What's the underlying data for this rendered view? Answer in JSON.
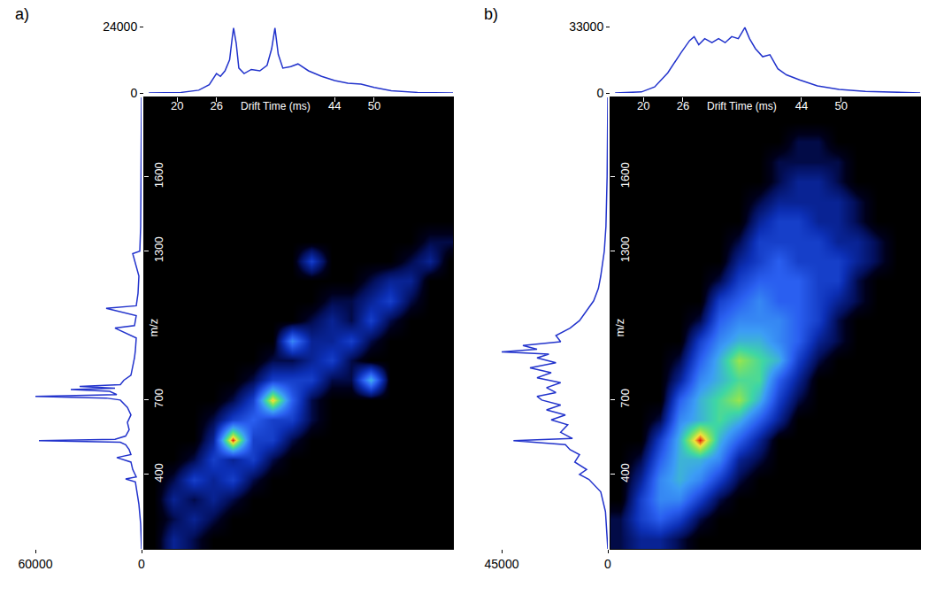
{
  "chart_data": [
    {
      "type": "heatmap",
      "title": "a)",
      "x_label": "Drift Time (ms)",
      "y_label": "m/z",
      "xlim": [
        15,
        62
      ],
      "xticks": [
        20,
        26,
        44,
        50
      ],
      "ylim": [
        100,
        1920
      ],
      "yticks": [
        400,
        700,
        1300,
        1600
      ],
      "x": [
        16.5,
        19.5,
        22.5,
        25.5,
        28.5,
        31.5,
        34.5,
        37.5,
        40.5,
        43.5,
        46.5,
        49.5,
        52.5,
        55.5,
        58.5,
        61.5
      ],
      "y": [
        140,
        220,
        300,
        380,
        460,
        540,
        620,
        700,
        780,
        860,
        940,
        1020,
        1100,
        1180,
        1260,
        1340,
        1420,
        1500,
        1580,
        1660,
        1740,
        1820,
        1900
      ],
      "z": [
        [
          0,
          2,
          1,
          0,
          0,
          0,
          0,
          0,
          0,
          0,
          0,
          0,
          0,
          0,
          0,
          0
        ],
        [
          0,
          1,
          2,
          1,
          0,
          0,
          0,
          0,
          0,
          0,
          0,
          0,
          0,
          0,
          0,
          0
        ],
        [
          0,
          2,
          1,
          2,
          1,
          0,
          0,
          0,
          0,
          0,
          0,
          0,
          0,
          0,
          0,
          0
        ],
        [
          0,
          1,
          3,
          2,
          3,
          1,
          0,
          0,
          0,
          0,
          0,
          0,
          0,
          0,
          0,
          0
        ],
        [
          0,
          0,
          1,
          3,
          2,
          3,
          1,
          0,
          0,
          0,
          0,
          0,
          0,
          0,
          0,
          0
        ],
        [
          0,
          0,
          0,
          2,
          10,
          3,
          3,
          1,
          0,
          0,
          0,
          0,
          0,
          0,
          0,
          0
        ],
        [
          0,
          0,
          0,
          1,
          3,
          4,
          3,
          3,
          1,
          0,
          0,
          0,
          0,
          0,
          0,
          0
        ],
        [
          0,
          0,
          0,
          0,
          1,
          3,
          9,
          4,
          1,
          0,
          0,
          0,
          0,
          0,
          0,
          0
        ],
        [
          0,
          0,
          0,
          0,
          0,
          1,
          3,
          3,
          3,
          1,
          1,
          6,
          0,
          0,
          0,
          0
        ],
        [
          0,
          0,
          0,
          0,
          0,
          0,
          1,
          1,
          2,
          3,
          1,
          0,
          0,
          0,
          0,
          0
        ],
        [
          0,
          0,
          0,
          0,
          0,
          0,
          0,
          5,
          2,
          2,
          3,
          1,
          0,
          0,
          0,
          0
        ],
        [
          0,
          0,
          0,
          0,
          0,
          0,
          0,
          0,
          1,
          2,
          1,
          3,
          1,
          0,
          0,
          0
        ],
        [
          0,
          0,
          0,
          0,
          0,
          0,
          0,
          0,
          0,
          1,
          1,
          2,
          3,
          1,
          0,
          0
        ],
        [
          0,
          0,
          0,
          0,
          0,
          0,
          0,
          0,
          0,
          0,
          0,
          1,
          2,
          2,
          0,
          0
        ],
        [
          0,
          0,
          0,
          0,
          0,
          0,
          0,
          0,
          3,
          0,
          0,
          0,
          0,
          1,
          2,
          0
        ],
        [
          0,
          0,
          0,
          0,
          0,
          0,
          0,
          0,
          0,
          0,
          0,
          0,
          0,
          0,
          1,
          1
        ],
        [
          0,
          0,
          0,
          0,
          0,
          0,
          0,
          0,
          0,
          0,
          0,
          0,
          0,
          0,
          0,
          0
        ],
        [
          0,
          0,
          0,
          0,
          0,
          0,
          0,
          0,
          0,
          0,
          0,
          0,
          0,
          0,
          0,
          0
        ],
        [
          0,
          0,
          0,
          0,
          0,
          0,
          0,
          0,
          0,
          0,
          0,
          0,
          0,
          0,
          0,
          0
        ],
        [
          0,
          0,
          0,
          0,
          0,
          0,
          0,
          0,
          0,
          0,
          0,
          0,
          0,
          0,
          0,
          0
        ],
        [
          0,
          0,
          0,
          0,
          0,
          0,
          0,
          0,
          0,
          0,
          0,
          0,
          0,
          0,
          0,
          0
        ],
        [
          0,
          0,
          0,
          0,
          0,
          0,
          0,
          0,
          0,
          0,
          0,
          0,
          0,
          0,
          0,
          0
        ],
        [
          0,
          0,
          0,
          0,
          0,
          0,
          0,
          0,
          0,
          0,
          0,
          0,
          0,
          0,
          0,
          0
        ]
      ],
      "drift_profile": {
        "type": "line",
        "color": "#2233cc",
        "tick_labels": "y",
        "xlim": [
          15,
          62
        ],
        "ylim": [
          0,
          24000
        ],
        "yticks": [
          0,
          24000
        ],
        "x": [
          15.7,
          20.6,
          23.3,
          24.9,
          26,
          26.6,
          27.3,
          28,
          28.4,
          28.6,
          29,
          29.4,
          30.2,
          31.3,
          32.6,
          33.7,
          34.4,
          34.9,
          35.4,
          36.1,
          37.3,
          38.4,
          40,
          42,
          44,
          46,
          48,
          50,
          52.6,
          56.6,
          62
        ],
        "values": [
          0,
          200,
          1000,
          3000,
          7000,
          6000,
          8000,
          12000,
          20000,
          23500,
          18000,
          9000,
          7000,
          8500,
          8000,
          10000,
          16000,
          23500,
          14000,
          9000,
          9500,
          10500,
          8000,
          6000,
          4500,
          3500,
          3200,
          2000,
          800,
          200,
          0
        ]
      },
      "mass_spectrum": {
        "type": "line",
        "color": "#2233cc",
        "tick_labels": "x",
        "xlim": [
          60000,
          0
        ],
        "xticks": [
          0,
          60000
        ],
        "ylim": [
          100,
          1920
        ],
        "y": [
          100,
          200,
          280,
          330,
          370,
          382,
          390,
          420,
          450,
          468,
          480,
          500,
          520,
          530,
          536,
          542,
          555,
          580,
          610,
          640,
          670,
          700,
          708,
          715,
          722,
          735,
          742,
          748,
          755,
          762,
          780,
          800,
          830,
          870,
          900,
          950,
          990,
          1000,
          1040,
          1070,
          1080,
          1130,
          1200,
          1290,
          1300,
          1400,
          1600,
          1920
        ],
        "values": [
          0,
          500,
          1500,
          2500,
          3500,
          9000,
          3000,
          5000,
          6000,
          14000,
          6000,
          7000,
          9000,
          12000,
          58000,
          15000,
          9000,
          7000,
          8000,
          6000,
          8000,
          12000,
          20000,
          60000,
          14000,
          18000,
          40000,
          15000,
          35000,
          12000,
          10000,
          6000,
          5000,
          4000,
          3500,
          3000,
          15000,
          4000,
          3000,
          20000,
          3000,
          2000,
          1500,
          5000,
          1000,
          500,
          300,
          0
        ]
      }
    },
    {
      "type": "heatmap",
      "title": "b)",
      "x_label": "Drift Time (ms)",
      "y_label": "m/z",
      "xlim": [
        15,
        62
      ],
      "xticks": [
        20,
        26,
        44,
        50
      ],
      "ylim": [
        100,
        1920
      ],
      "yticks": [
        400,
        700,
        1300,
        1600
      ],
      "x": [
        16.5,
        19.5,
        22.5,
        25.5,
        28.5,
        31.5,
        34.5,
        37.5,
        40.5,
        43.5,
        46.5,
        49.5,
        52.5,
        55.5,
        58.5,
        61.5
      ],
      "y": [
        140,
        220,
        300,
        380,
        460,
        540,
        620,
        700,
        780,
        860,
        940,
        1020,
        1100,
        1180,
        1260,
        1340,
        1420,
        1500,
        1580,
        1660,
        1740,
        1820,
        1900
      ],
      "z": [
        [
          1,
          2,
          2,
          1,
          0,
          0,
          0,
          0,
          0,
          0,
          0,
          0,
          0,
          0,
          0,
          0
        ],
        [
          1,
          3,
          4,
          3,
          1,
          0,
          0,
          0,
          0,
          0,
          0,
          0,
          0,
          0,
          0,
          0
        ],
        [
          0,
          3,
          5,
          5,
          3,
          1,
          0,
          0,
          0,
          0,
          0,
          0,
          0,
          0,
          0,
          0
        ],
        [
          0,
          2,
          5,
          6,
          5,
          3,
          1,
          0,
          0,
          0,
          0,
          0,
          0,
          0,
          0,
          0
        ],
        [
          0,
          1,
          4,
          6,
          6,
          5,
          2,
          1,
          0,
          0,
          0,
          0,
          0,
          0,
          0,
          0
        ],
        [
          0,
          0,
          3,
          6,
          10,
          6,
          4,
          2,
          0,
          0,
          0,
          0,
          0,
          0,
          0,
          0
        ],
        [
          0,
          0,
          1,
          5,
          6,
          7,
          6,
          4,
          2,
          0,
          0,
          0,
          0,
          0,
          0,
          0
        ],
        [
          0,
          0,
          0,
          4,
          6,
          7,
          8,
          6,
          3,
          1,
          0,
          0,
          0,
          0,
          0,
          0
        ],
        [
          0,
          0,
          0,
          2,
          5,
          6,
          7,
          7,
          4,
          2,
          0,
          0,
          0,
          0,
          0,
          0
        ],
        [
          0,
          0,
          0,
          1,
          4,
          6,
          8,
          7,
          6,
          3,
          1,
          0,
          0,
          0,
          0,
          0
        ],
        [
          0,
          0,
          0,
          0,
          3,
          5,
          6,
          6,
          5,
          4,
          2,
          1,
          0,
          0,
          0,
          0
        ],
        [
          0,
          0,
          0,
          0,
          1,
          4,
          5,
          5,
          5,
          4,
          3,
          1,
          0,
          0,
          0,
          0
        ],
        [
          0,
          0,
          0,
          0,
          0,
          3,
          4,
          5,
          4,
          4,
          3,
          2,
          1,
          0,
          0,
          0
        ],
        [
          0,
          0,
          0,
          0,
          0,
          1,
          3,
          4,
          4,
          4,
          3,
          3,
          1,
          0,
          0,
          0
        ],
        [
          0,
          0,
          0,
          0,
          0,
          0,
          2,
          3,
          4,
          3,
          3,
          3,
          2,
          1,
          0,
          0
        ],
        [
          0,
          0,
          0,
          0,
          0,
          0,
          1,
          3,
          3,
          3,
          3,
          2,
          2,
          1,
          0,
          0
        ],
        [
          0,
          0,
          0,
          0,
          0,
          0,
          0,
          2,
          3,
          3,
          2,
          2,
          1,
          0,
          0,
          0
        ],
        [
          0,
          0,
          0,
          0,
          0,
          0,
          0,
          1,
          2,
          2,
          2,
          2,
          1,
          0,
          0,
          0
        ],
        [
          0,
          0,
          0,
          0,
          0,
          0,
          0,
          0,
          1,
          2,
          2,
          1,
          0,
          0,
          0,
          0
        ],
        [
          0,
          0,
          0,
          0,
          0,
          0,
          0,
          0,
          1,
          1,
          1,
          1,
          0,
          0,
          0,
          0
        ],
        [
          0,
          0,
          0,
          0,
          0,
          0,
          0,
          0,
          0,
          1,
          1,
          0,
          0,
          0,
          0,
          0
        ],
        [
          0,
          0,
          0,
          0,
          0,
          0,
          0,
          0,
          0,
          0,
          0,
          0,
          0,
          0,
          0,
          0
        ],
        [
          0,
          0,
          0,
          0,
          0,
          0,
          0,
          0,
          0,
          0,
          0,
          0,
          0,
          0,
          0,
          0
        ]
      ],
      "drift_profile": {
        "type": "line",
        "color": "#2233cc",
        "tick_labels": "y",
        "xlim": [
          15,
          62
        ],
        "ylim": [
          0,
          33000
        ],
        "yticks": [
          0,
          33000
        ],
        "x": [
          15.7,
          19.7,
          21.7,
          23.7,
          25.7,
          27,
          27.7,
          28.4,
          29.3,
          30.4,
          31.4,
          32.4,
          33.4,
          34.4,
          35.4,
          36.1,
          37,
          38.1,
          39.2,
          40.4,
          41.7,
          43.7,
          46.4,
          49.7,
          53.7,
          58.4,
          62
        ],
        "values": [
          0,
          500,
          3000,
          10000,
          20000,
          26000,
          28000,
          24000,
          27000,
          25000,
          27000,
          25000,
          28000,
          27000,
          32500,
          27000,
          22000,
          18000,
          19000,
          12000,
          9000,
          6500,
          3500,
          1800,
          800,
          200,
          0
        ]
      },
      "mass_spectrum": {
        "type": "line",
        "color": "#2233cc",
        "tick_labels": "x",
        "xlim": [
          45000,
          0
        ],
        "xticks": [
          0,
          45000
        ],
        "ylim": [
          100,
          1920
        ],
        "y": [
          100,
          250,
          330,
          380,
          400,
          420,
          450,
          480,
          500,
          520,
          536,
          545,
          570,
          600,
          620,
          640,
          660,
          680,
          700,
          715,
          730,
          750,
          770,
          790,
          810,
          830,
          850,
          870,
          885,
          894,
          905,
          920,
          935,
          960,
          990,
          1020,
          1060,
          1100,
          1150,
          1200,
          1300,
          1400,
          1600,
          1920
        ],
        "values": [
          0,
          1000,
          3000,
          8000,
          12000,
          9000,
          14000,
          12000,
          16000,
          18000,
          40000,
          15000,
          20000,
          17000,
          24000,
          18000,
          26000,
          20000,
          28000,
          30000,
          22000,
          26000,
          20000,
          30000,
          24000,
          33000,
          22000,
          30000,
          25000,
          45000,
          30000,
          36000,
          20000,
          22000,
          16000,
          12000,
          9000,
          6000,
          4000,
          3000,
          1500,
          800,
          300,
          0
        ]
      }
    }
  ]
}
